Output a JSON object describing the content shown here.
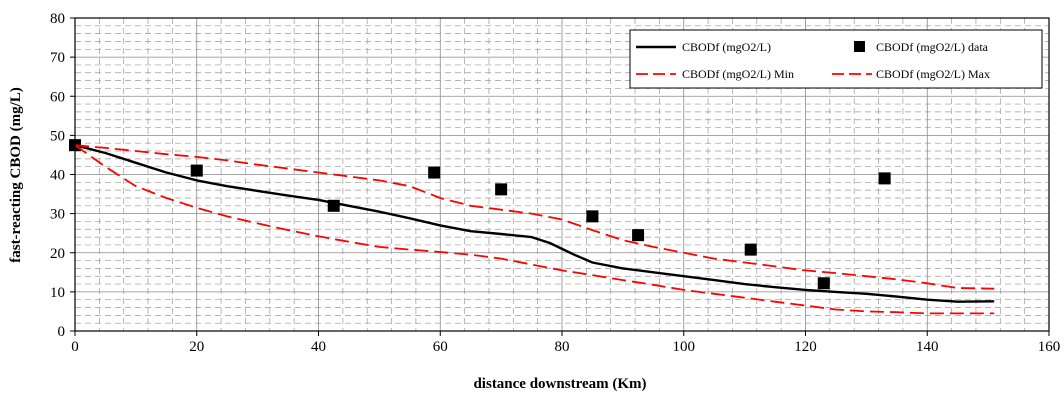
{
  "chart_data": {
    "type": "line",
    "title": "",
    "xlabel": "distance downstream (Km)",
    "ylabel": "fast-reacting CBOD (mg/L)",
    "xlim": [
      0,
      160
    ],
    "ylim": [
      0,
      80
    ],
    "x_ticks": [
      "0",
      "20",
      "40",
      "60",
      "80",
      "100",
      "120",
      "140",
      "160"
    ],
    "y_ticks": [
      "0",
      "10",
      "20",
      "30",
      "40",
      "50",
      "60",
      "70",
      "80"
    ],
    "grid": true,
    "legend_position": "top-right",
    "series": [
      {
        "name": "CBODf (mgO2/L)",
        "style": "solid",
        "color": "#000000",
        "x": [
          0,
          5,
          10,
          15,
          20,
          25,
          30,
          35,
          40,
          45,
          50,
          55,
          60,
          65,
          70,
          75,
          78,
          82,
          85,
          90,
          95,
          100,
          105,
          110,
          115,
          120,
          125,
          130,
          135,
          140,
          145,
          151
        ],
        "y": [
          47.5,
          45.5,
          43,
          40.5,
          38.5,
          37,
          35.8,
          34.6,
          33.5,
          32,
          30.5,
          28.8,
          27,
          25.5,
          24.8,
          24,
          22.5,
          19.5,
          17.5,
          16,
          15,
          14,
          13,
          12,
          11.2,
          10.5,
          10,
          9.5,
          8.8,
          8,
          7.5,
          7.6
        ]
      },
      {
        "name": "CBODf (mgO2/L) data",
        "style": "marker-square",
        "color": "#000000",
        "x": [
          0,
          20,
          42.5,
          59,
          70,
          85,
          92.5,
          111,
          123,
          133
        ],
        "y": [
          47.5,
          41,
          32,
          40.5,
          36.2,
          29.3,
          24.5,
          20.8,
          12.2,
          39
        ]
      },
      {
        "name": "CBODf (mgO2/L) Min",
        "style": "dashed",
        "color": "#ff0000",
        "x": [
          0,
          5,
          10,
          15,
          20,
          25,
          30,
          35,
          40,
          45,
          50,
          55,
          60,
          65,
          70,
          75,
          80,
          85,
          90,
          95,
          100,
          105,
          110,
          115,
          120,
          125,
          130,
          135,
          140,
          145,
          151
        ],
        "y": [
          47.5,
          42,
          37,
          34,
          31.5,
          29.3,
          27.5,
          25.8,
          24.2,
          22.8,
          21.5,
          20.8,
          20.2,
          19.5,
          18.5,
          17,
          15.5,
          14.3,
          13,
          11.8,
          10.5,
          9.5,
          8.5,
          7.5,
          6.5,
          5.5,
          5,
          4.8,
          4.5,
          4.5,
          4.5
        ]
      },
      {
        "name": "CBODf (mgO2/L) Max",
        "style": "dashed",
        "color": "#ff0000",
        "x": [
          0,
          5,
          10,
          15,
          20,
          25,
          30,
          35,
          40,
          45,
          50,
          55,
          60,
          65,
          70,
          75,
          80,
          85,
          90,
          95,
          100,
          105,
          110,
          115,
          120,
          125,
          130,
          135,
          140,
          145,
          151
        ],
        "y": [
          47.5,
          46.8,
          46,
          45.2,
          44.5,
          43.6,
          42.5,
          41.5,
          40.5,
          39.5,
          38.5,
          37,
          34,
          32,
          31,
          30,
          28.5,
          25.8,
          23.2,
          21.5,
          20,
          18.5,
          17.5,
          16.5,
          15.5,
          14.8,
          14,
          13.2,
          12.2,
          11,
          10.8
        ]
      }
    ]
  }
}
